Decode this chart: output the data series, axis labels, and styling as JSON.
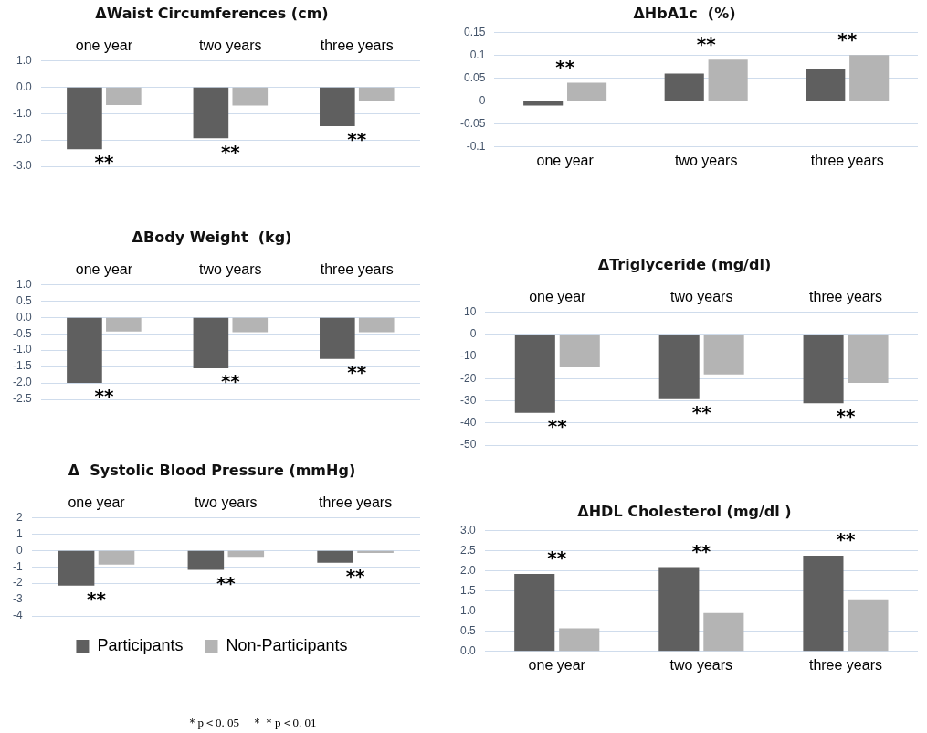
{
  "chart_data": [
    {
      "type": "bar",
      "title": "ΔWaist Circumferences (cm)",
      "categories": [
        "one year",
        "two years",
        "three years"
      ],
      "series": [
        {
          "color": "#5f5f5f",
          "values": [
            -2.35,
            -1.94,
            -1.48
          ]
        },
        {
          "color": "#b4b4b4",
          "values": [
            -0.68,
            -0.7,
            -0.52
          ]
        }
      ],
      "ylim": [
        -3,
        1
      ],
      "yticks": [
        {
          "value": -3,
          "label": "-3.0"
        },
        {
          "value": -2,
          "label": "-2.0"
        },
        {
          "value": -1,
          "label": "-1.0"
        },
        {
          "value": 0,
          "label": "0.0"
        },
        {
          "value": 1,
          "label": "1.0"
        }
      ],
      "grid": "y",
      "annotations": [
        "**",
        "**",
        "**"
      ]
    },
    {
      "type": "bar",
      "title": "ΔHbA1c  (%)",
      "categories": [
        "one year",
        "two years",
        "three years"
      ],
      "series": [
        {
          "color": "#5f5f5f",
          "values": [
            -0.01,
            0.06,
            0.07
          ]
        },
        {
          "color": "#b4b4b4",
          "values": [
            0.04,
            0.09,
            0.1
          ]
        }
      ],
      "ylim": [
        -0.1,
        0.15
      ],
      "yticks": [
        -0.1,
        -0.05,
        0,
        0.05,
        0.1,
        0.15
      ],
      "grid": "y",
      "annotations": [
        "**",
        "**",
        "**"
      ]
    },
    {
      "type": "bar",
      "title": "ΔBody Weight  (kg)",
      "categories": [
        "one year",
        "two years",
        "three years"
      ],
      "series": [
        {
          "color": "#5f5f5f",
          "values": [
            -2.0,
            -1.55,
            -1.27
          ]
        },
        {
          "color": "#b4b4b4",
          "values": [
            -0.43,
            -0.45,
            -0.45
          ]
        }
      ],
      "ylim": [
        -2.5,
        1
      ],
      "yticks": [
        -2.5,
        {
          "value": -2,
          "label": "-2.0"
        },
        -1.5,
        {
          "value": -1,
          "label": "-1.0"
        },
        -0.5,
        {
          "value": 0,
          "label": "0.0"
        },
        0.5,
        {
          "value": 1,
          "label": "1.0"
        }
      ],
      "grid": "y",
      "annotations": [
        "**",
        "**",
        "**"
      ]
    },
    {
      "type": "bar",
      "title": "ΔTriglyceride (mg/dl)",
      "categories": [
        "one year",
        "two years",
        "three years"
      ],
      "series": [
        {
          "color": "#5f5f5f",
          "values": [
            -35.5,
            -29.3,
            -31.1
          ]
        },
        {
          "color": "#b4b4b4",
          "values": [
            -15,
            -18.2,
            -22
          ]
        }
      ],
      "ylim": [
        -50,
        10
      ],
      "yticks": [
        -50,
        -40,
        -30,
        -20,
        -10,
        0,
        10
      ],
      "grid": "y",
      "annotations": [
        "**",
        "**",
        "**"
      ]
    },
    {
      "type": "bar",
      "title": "Δ  Systolic Blood Pressure (mmHg)",
      "categories": [
        "one year",
        "two years",
        "three years"
      ],
      "series": [
        {
          "name": "Participants",
          "color": "#5f5f5f",
          "values": [
            -2.15,
            -1.19,
            -0.75
          ]
        },
        {
          "name": "Non-Participants",
          "color": "#b4b4b4",
          "values": [
            -0.87,
            -0.39,
            -0.15
          ]
        }
      ],
      "ylim": [
        -4,
        2
      ],
      "yticks": [
        -4,
        -3,
        -2,
        -1,
        0,
        1,
        2
      ],
      "grid": "y",
      "legend": "bottom",
      "annotations": [
        "**",
        "**",
        "**",
        "＊p＜0. 05　＊＊p＜0. 01"
      ]
    },
    {
      "type": "bar",
      "title": "ΔHDL Cholesterol (mg/dl )",
      "categories": [
        "one year",
        "two years",
        "three years"
      ],
      "series": [
        {
          "color": "#5f5f5f",
          "values": [
            1.92,
            2.09,
            2.37
          ]
        },
        {
          "color": "#b4b4b4",
          "values": [
            0.57,
            0.95,
            1.29
          ]
        }
      ],
      "ylim": [
        0,
        3
      ],
      "yticks": [
        {
          "value": 0,
          "label": "0.0"
        },
        0.5,
        {
          "value": 1,
          "label": "1.0"
        },
        1.5,
        {
          "value": 2,
          "label": "2.0"
        },
        2.5,
        {
          "value": 3,
          "label": "3.0"
        }
      ],
      "grid": "y",
      "annotations": [
        "**",
        "**",
        "**"
      ]
    }
  ]
}
